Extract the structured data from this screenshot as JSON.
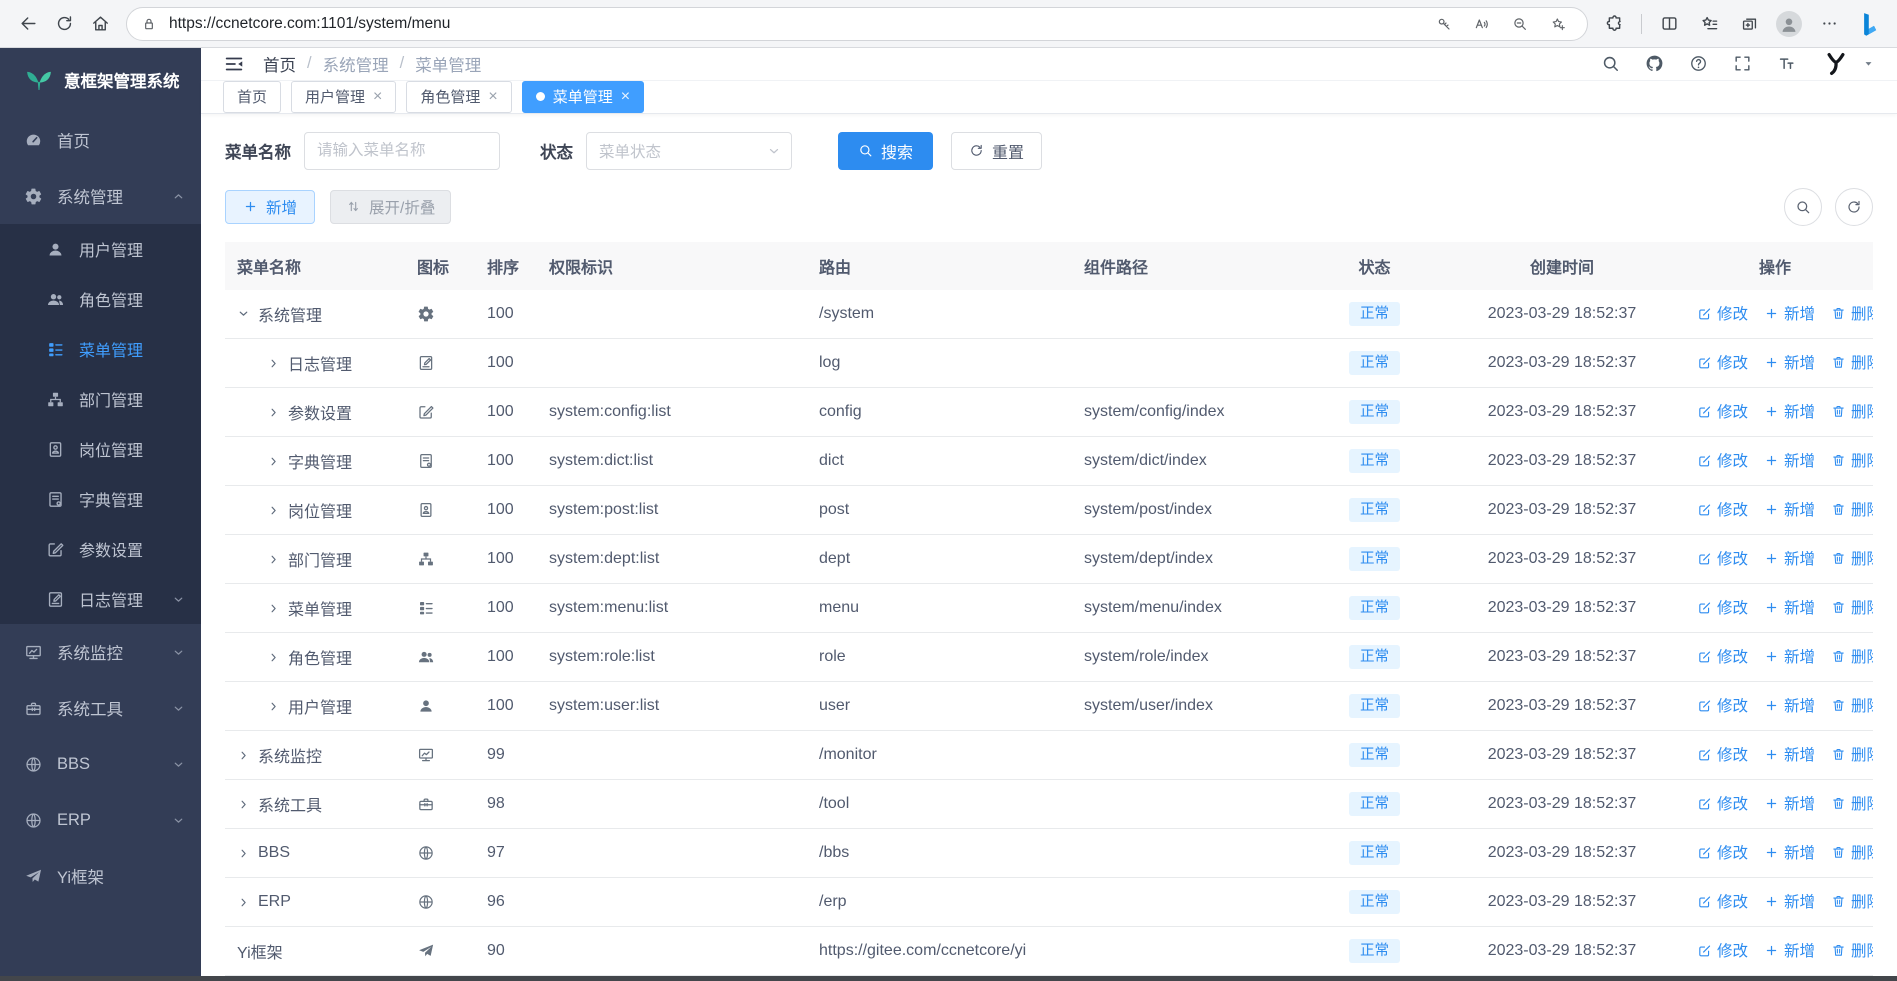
{
  "browser": {
    "url": "https://ccnetcore.com:1101/system/menu",
    "left_icons": [
      "back",
      "reload",
      "home"
    ],
    "urlbar_icons": [
      "lock",
      "key",
      "read-aloud",
      "zoom-out",
      "favorite-add"
    ],
    "right_icons": [
      "extensions",
      "split-screen",
      "favorites-bar",
      "collections",
      "profile",
      "more",
      "bing"
    ]
  },
  "sidebar": {
    "logo_text": "意框架管理系统",
    "items": [
      {
        "id": "home",
        "label": "首页",
        "icon": "gauge"
      },
      {
        "id": "system",
        "label": "系统管理",
        "icon": "gear",
        "expanded": true,
        "children": [
          {
            "id": "user",
            "label": "用户管理",
            "icon": "user"
          },
          {
            "id": "role",
            "label": "角色管理",
            "icon": "users"
          },
          {
            "id": "menu",
            "label": "菜单管理",
            "icon": "menutree",
            "active": true
          },
          {
            "id": "dept",
            "label": "部门管理",
            "icon": "org"
          },
          {
            "id": "post",
            "label": "岗位管理",
            "icon": "badge"
          },
          {
            "id": "dict",
            "label": "字典管理",
            "icon": "book"
          },
          {
            "id": "config",
            "label": "参数设置",
            "icon": "editsq"
          },
          {
            "id": "log",
            "label": "日志管理",
            "icon": "logdoc",
            "has_children": true
          }
        ]
      },
      {
        "id": "monitor",
        "label": "系统监控",
        "icon": "monitor",
        "has_children": true
      },
      {
        "id": "tool",
        "label": "系统工具",
        "icon": "toolbox",
        "has_children": true
      },
      {
        "id": "bbs",
        "label": "BBS",
        "icon": "globe",
        "has_children": true
      },
      {
        "id": "erp",
        "label": "ERP",
        "icon": "globe",
        "has_children": true
      },
      {
        "id": "yi",
        "label": "Yi框架",
        "icon": "plane"
      }
    ]
  },
  "navbar": {
    "breadcrumb": [
      {
        "label": "首页"
      },
      {
        "label": "系统管理"
      },
      {
        "label": "菜单管理"
      }
    ],
    "right_icons": [
      "search",
      "github",
      "question",
      "fullscreen",
      "font-size",
      "yi-logo",
      "caret-down"
    ]
  },
  "tabs": [
    {
      "id": "home",
      "label": "首页",
      "closable": false,
      "active": false
    },
    {
      "id": "user",
      "label": "用户管理",
      "closable": true,
      "active": false
    },
    {
      "id": "role",
      "label": "角色管理",
      "closable": true,
      "active": false
    },
    {
      "id": "menu",
      "label": "菜单管理",
      "closable": true,
      "active": true
    }
  ],
  "search": {
    "name_label": "菜单名称",
    "name_placeholder": "请输入菜单名称",
    "status_label": "状态",
    "status_placeholder": "菜单状态",
    "search_button": "搜索",
    "reset_button": "重置"
  },
  "toolbar": {
    "add_button": "新增",
    "toggle_button": "展开/折叠"
  },
  "table": {
    "columns": [
      "菜单名称",
      "图标",
      "排序",
      "权限标识",
      "路由",
      "组件路径",
      "状态",
      "创建时间",
      "操作"
    ],
    "actions": {
      "edit": "修改",
      "add": "新增",
      "delete": "删除"
    },
    "rows": [
      {
        "level": 0,
        "expander": "down",
        "name": "系统管理",
        "icon": "gear",
        "sort": "100",
        "perm": "",
        "route": "/system",
        "component": "",
        "status": "正常",
        "created": "2023-03-29 18:52:37"
      },
      {
        "level": 1,
        "expander": "right",
        "name": "日志管理",
        "icon": "logdoc",
        "sort": "100",
        "perm": "",
        "route": "log",
        "component": "",
        "status": "正常",
        "created": "2023-03-29 18:52:37"
      },
      {
        "level": 1,
        "expander": "right",
        "name": "参数设置",
        "icon": "editsq",
        "sort": "100",
        "perm": "system:config:list",
        "route": "config",
        "component": "system/config/index",
        "status": "正常",
        "created": "2023-03-29 18:52:37"
      },
      {
        "level": 1,
        "expander": "right",
        "name": "字典管理",
        "icon": "book",
        "sort": "100",
        "perm": "system:dict:list",
        "route": "dict",
        "component": "system/dict/index",
        "status": "正常",
        "created": "2023-03-29 18:52:37"
      },
      {
        "level": 1,
        "expander": "right",
        "name": "岗位管理",
        "icon": "badge",
        "sort": "100",
        "perm": "system:post:list",
        "route": "post",
        "component": "system/post/index",
        "status": "正常",
        "created": "2023-03-29 18:52:37"
      },
      {
        "level": 1,
        "expander": "right",
        "name": "部门管理",
        "icon": "org",
        "sort": "100",
        "perm": "system:dept:list",
        "route": "dept",
        "component": "system/dept/index",
        "status": "正常",
        "created": "2023-03-29 18:52:37"
      },
      {
        "level": 1,
        "expander": "right",
        "name": "菜单管理",
        "icon": "menutree",
        "sort": "100",
        "perm": "system:menu:list",
        "route": "menu",
        "component": "system/menu/index",
        "status": "正常",
        "created": "2023-03-29 18:52:37"
      },
      {
        "level": 1,
        "expander": "right",
        "name": "角色管理",
        "icon": "users",
        "sort": "100",
        "perm": "system:role:list",
        "route": "role",
        "component": "system/role/index",
        "status": "正常",
        "created": "2023-03-29 18:52:37"
      },
      {
        "level": 1,
        "expander": "right",
        "name": "用户管理",
        "icon": "user",
        "sort": "100",
        "perm": "system:user:list",
        "route": "user",
        "component": "system/user/index",
        "status": "正常",
        "created": "2023-03-29 18:52:37"
      },
      {
        "level": 0,
        "expander": "right",
        "name": "系统监控",
        "icon": "monitor",
        "sort": "99",
        "perm": "",
        "route": "/monitor",
        "component": "",
        "status": "正常",
        "created": "2023-03-29 18:52:37"
      },
      {
        "level": 0,
        "expander": "right",
        "name": "系统工具",
        "icon": "toolbox",
        "sort": "98",
        "perm": "",
        "route": "/tool",
        "component": "",
        "status": "正常",
        "created": "2023-03-29 18:52:37"
      },
      {
        "level": 0,
        "expander": "right",
        "name": "BBS",
        "icon": "globe",
        "sort": "97",
        "perm": "",
        "route": "/bbs",
        "component": "",
        "status": "正常",
        "created": "2023-03-29 18:52:37"
      },
      {
        "level": 0,
        "expander": "right",
        "name": "ERP",
        "icon": "globe",
        "sort": "96",
        "perm": "",
        "route": "/erp",
        "component": "",
        "status": "正常",
        "created": "2023-03-29 18:52:37"
      },
      {
        "level": 0,
        "expander": "none",
        "name": "Yi框架",
        "icon": "plane",
        "sort": "90",
        "perm": "",
        "route": "https://gitee.com/ccnetcore/yi",
        "component": "",
        "status": "正常",
        "created": "2023-03-29 18:52:37"
      }
    ]
  },
  "colors": {
    "accent": "#2d8cf0",
    "active_tab": "#409eff",
    "sidebar_bg": "#333d56",
    "sidebar_submenu_bg": "#273046",
    "sidebar_active_text": "#409eff",
    "status_badge_bg": "#e6f4ff",
    "status_badge_text": "#2d8cf0",
    "logo_green": "#2fae93"
  }
}
